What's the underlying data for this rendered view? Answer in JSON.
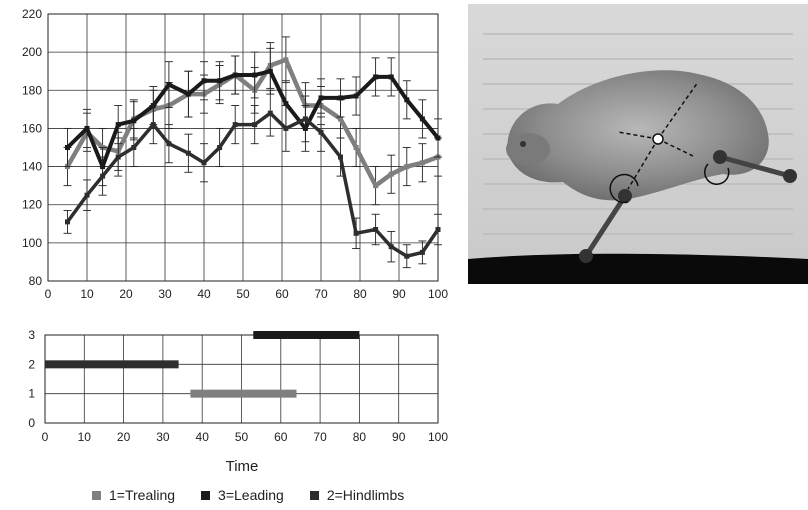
{
  "chart_data": [
    {
      "type": "line",
      "title": "",
      "xlabel": "",
      "ylabel": "",
      "xlim": [
        0,
        100
      ],
      "ylim": [
        80,
        220
      ],
      "xticks": [
        0,
        10,
        20,
        30,
        40,
        50,
        60,
        70,
        80,
        90,
        100
      ],
      "yticks": [
        80,
        100,
        120,
        140,
        160,
        180,
        200,
        220
      ],
      "grid": true,
      "colors": {
        "Trealing": "#7f7f7f",
        "Leading": "#1a1a1a",
        "Hindlimbs": "#2e2e2e"
      },
      "series": [
        {
          "key": "Trealing",
          "x": [
            5,
            10,
            14,
            18,
            22,
            27,
            31,
            36,
            40,
            44,
            48,
            53,
            57,
            61,
            66,
            70,
            75,
            79,
            84,
            88,
            92,
            96,
            100
          ],
          "y": [
            140,
            158,
            150,
            148,
            165,
            170,
            172,
            178,
            178,
            183,
            188,
            180,
            193,
            196,
            172,
            172,
            165,
            150,
            130,
            136,
            140,
            142,
            145
          ],
          "err": [
            10,
            10,
            10,
            10,
            10,
            10,
            12,
            12,
            10,
            10,
            10,
            12,
            12,
            12,
            12,
            10,
            10,
            10,
            10,
            10,
            10,
            10,
            10
          ]
        },
        {
          "key": "Leading",
          "x": [
            5,
            10,
            14,
            18,
            22,
            27,
            31,
            36,
            40,
            44,
            48,
            53,
            57,
            61,
            66,
            70,
            75,
            79,
            84,
            88,
            92,
            96,
            100
          ],
          "y": [
            150,
            160,
            140,
            162,
            164,
            172,
            183,
            178,
            185,
            185,
            188,
            188,
            190,
            173,
            160,
            176,
            176,
            177,
            187,
            187,
            175,
            165,
            155
          ],
          "err": [
            10,
            10,
            10,
            10,
            10,
            10,
            12,
            12,
            10,
            10,
            10,
            12,
            12,
            12,
            12,
            10,
            10,
            10,
            10,
            10,
            10,
            10,
            10
          ]
        },
        {
          "key": "Hindlimbs",
          "x": [
            5,
            10,
            14,
            18,
            22,
            27,
            31,
            36,
            40,
            44,
            48,
            53,
            57,
            61,
            66,
            70,
            75,
            79,
            84,
            88,
            92,
            96,
            100
          ],
          "y": [
            111,
            125,
            135,
            145,
            150,
            162,
            152,
            147,
            142,
            150,
            162,
            162,
            168,
            160,
            165,
            158,
            145,
            105,
            107,
            98,
            93,
            95,
            107
          ],
          "err": [
            6,
            8,
            10,
            10,
            10,
            10,
            10,
            10,
            10,
            10,
            10,
            10,
            12,
            12,
            12,
            10,
            10,
            8,
            8,
            8,
            6,
            6,
            8
          ]
        }
      ]
    },
    {
      "type": "bar",
      "orientation": "horizontal-segments",
      "xlabel": "Time",
      "xlim": [
        0,
        100
      ],
      "ylim": [
        0,
        3
      ],
      "xticks": [
        0,
        10,
        20,
        30,
        40,
        50,
        60,
        70,
        80,
        90,
        100
      ],
      "yticks": [
        0,
        1,
        2,
        3
      ],
      "grid": true,
      "segments": [
        {
          "key": "Hindlimbs",
          "level": 2,
          "x_start": 0,
          "x_end": 34
        },
        {
          "key": "Trealing",
          "level": 1,
          "x_start": 37,
          "x_end": 64
        },
        {
          "key": "Leading",
          "level": 3,
          "x_start": 53,
          "x_end": 80
        }
      ]
    }
  ],
  "legend": {
    "placement": "bottom",
    "items": [
      {
        "label": "1=Trealing",
        "color": "#7f7f7f"
      },
      {
        "label": "3=Leading",
        "color": "#1a1a1a"
      },
      {
        "label": "2=Hindlimbs",
        "color": "#2e2e2e"
      }
    ]
  },
  "photo": {
    "subject": "rat-jumping-photo"
  }
}
